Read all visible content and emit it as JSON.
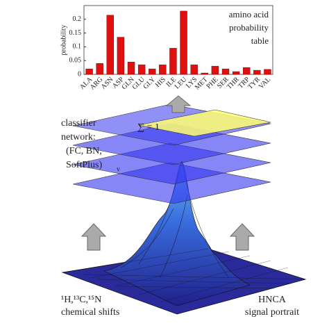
{
  "chart_data": {
    "type": "bar",
    "ylabel": "probability",
    "annotation": [
      "amino acid",
      "probability",
      "table"
    ],
    "categories": [
      "ALA",
      "ARG",
      "ASN",
      "ASP",
      "GLN",
      "GLU",
      "GLY",
      "HIS",
      "ILE",
      "LEU",
      "LYS",
      "MET",
      "PHE",
      "SER",
      "THR",
      "TRP",
      "TYR",
      "VAL"
    ],
    "values": [
      0.02,
      0.04,
      0.215,
      0.135,
      0.045,
      0.035,
      0.02,
      0.035,
      0.095,
      0.23,
      0.035,
      0.005,
      0.03,
      0.02,
      0.01,
      0.025,
      0.015,
      0.018
    ],
    "color": "#e01010",
    "ylim": [
      0,
      0.25
    ],
    "yticks": [
      0,
      0.05,
      0.1,
      0.15,
      0.2
    ]
  },
  "diagram": {
    "sum_label": "∑ = 1",
    "classifier": [
      "classifier",
      "network:",
      "(FC, BN,",
      "SoftPlus)"
    ],
    "classifier_sub": "v",
    "input_left": [
      "¹H,¹³C,¹⁵N",
      "chemical shifts"
    ],
    "input_right": [
      "HNCA",
      "signal portrait"
    ]
  }
}
